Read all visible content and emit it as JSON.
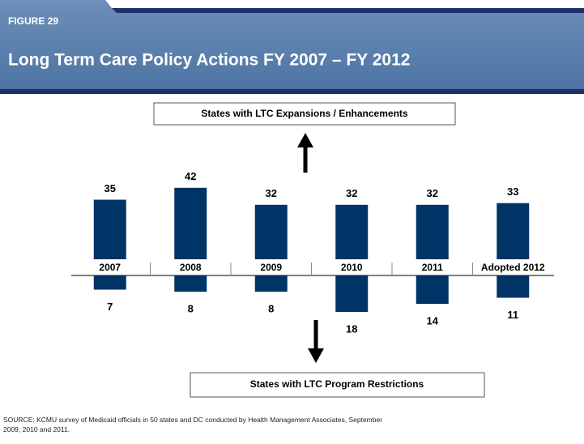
{
  "chart_data": {
    "type": "bar",
    "figure_label": "FIGURE 29",
    "title": "Long Term Care Policy Actions FY 2007 – FY 2012",
    "categories": [
      "2007",
      "2008",
      "2009",
      "2010",
      "2011",
      "Adopted 2012"
    ],
    "series": [
      {
        "name": "States with LTC Expansions / Enhancements",
        "color": "#003366",
        "values": [
          35,
          42,
          32,
          32,
          32,
          33
        ]
      },
      {
        "name": "States with LTC Program Restrictions",
        "color": "#003366",
        "values": [
          7,
          8,
          8,
          18,
          14,
          11
        ]
      }
    ],
    "source": "SOURCE: KCMU survey of Medicaid officials in 50 states and DC conducted by Health Management Associates, September 2009, 2010 and 2011."
  }
}
